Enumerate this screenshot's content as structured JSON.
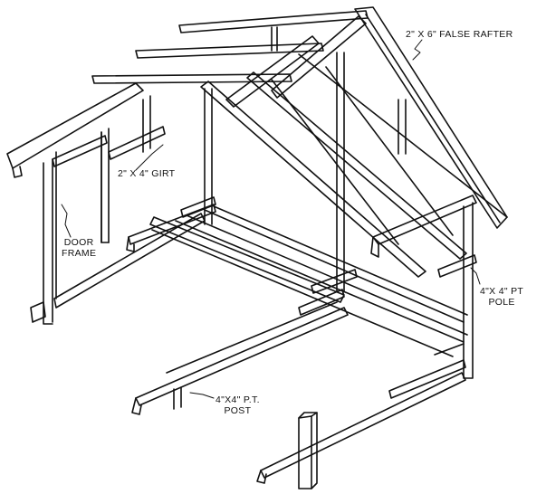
{
  "labels": {
    "false_rafter": "2\" X 6\" FALSE RAFTER",
    "girt": "2\" X 4\" GIRT",
    "door_frame_line1": "DOOR",
    "door_frame_line2": "FRAME",
    "pole_line1": "4\"X 4\" PT",
    "pole_line2": "POLE",
    "post_line1": "4\"X4\" P.T.",
    "post_line2": "POST"
  },
  "colors": {
    "ink": "#111111",
    "paper": "#ffffff"
  }
}
